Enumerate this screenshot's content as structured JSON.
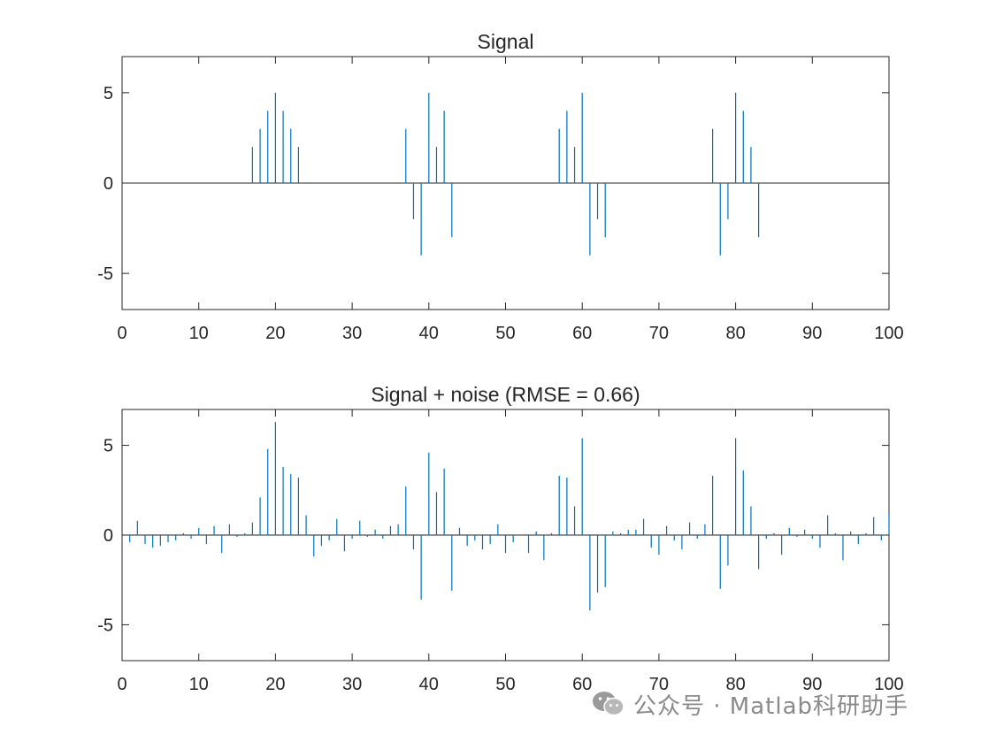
{
  "chart_data": [
    {
      "type": "stem",
      "title": "Signal",
      "xlabel": "",
      "ylabel": "",
      "xlim": [
        0,
        100
      ],
      "ylim": [
        -7,
        7
      ],
      "xticks": [
        0,
        10,
        20,
        30,
        40,
        50,
        60,
        70,
        80,
        90,
        100
      ],
      "yticks": [
        5,
        0,
        -5
      ],
      "color": "#0072BD",
      "x": [
        17,
        18,
        19,
        20,
        21,
        22,
        23,
        37,
        38,
        39,
        40,
        41,
        42,
        43,
        57,
        58,
        59,
        60,
        61,
        62,
        63,
        77,
        78,
        79,
        80,
        81,
        82,
        83
      ],
      "values": [
        2,
        3,
        4,
        5,
        4,
        3,
        2,
        3,
        -2,
        -4,
        5,
        2,
        4,
        -3,
        3,
        4,
        2,
        5,
        -4,
        -2,
        -3,
        3,
        -4,
        -2,
        5,
        4,
        2,
        -3
      ]
    },
    {
      "type": "stem",
      "title": "Signal + noise (RMSE = 0.66)",
      "xlabel": "",
      "ylabel": "",
      "xlim": [
        0,
        100
      ],
      "ylim": [
        -7,
        7
      ],
      "xticks": [
        0,
        10,
        20,
        30,
        40,
        50,
        60,
        70,
        80,
        90,
        100
      ],
      "yticks": [
        5,
        0,
        -5
      ],
      "color": "#0072BD",
      "x": [
        1,
        2,
        3,
        4,
        5,
        6,
        7,
        8,
        9,
        10,
        11,
        12,
        13,
        14,
        15,
        16,
        17,
        18,
        19,
        20,
        21,
        22,
        23,
        24,
        25,
        26,
        27,
        28,
        29,
        30,
        31,
        32,
        33,
        34,
        35,
        36,
        37,
        38,
        39,
        40,
        41,
        42,
        43,
        44,
        45,
        46,
        47,
        48,
        49,
        50,
        51,
        52,
        53,
        54,
        55,
        56,
        57,
        58,
        59,
        60,
        61,
        62,
        63,
        64,
        65,
        66,
        67,
        68,
        69,
        70,
        71,
        72,
        73,
        74,
        75,
        76,
        77,
        78,
        79,
        80,
        81,
        82,
        83,
        84,
        85,
        86,
        87,
        88,
        89,
        90,
        91,
        92,
        93,
        94,
        95,
        96,
        97,
        98,
        99,
        100
      ],
      "values": [
        -0.4,
        0.8,
        -0.5,
        -0.7,
        -0.6,
        -0.4,
        -0.3,
        0.1,
        -0.2,
        0.4,
        -0.5,
        0.5,
        -1.0,
        0.6,
        -0.1,
        0.1,
        0.7,
        2.1,
        4.8,
        6.3,
        3.8,
        3.4,
        3.2,
        1.1,
        -1.2,
        -0.6,
        -0.3,
        0.9,
        -0.9,
        -0.2,
        0.8,
        -0.1,
        0.3,
        -0.2,
        0.5,
        0.6,
        2.7,
        -0.8,
        -3.6,
        4.6,
        2.4,
        3.7,
        -3.1,
        0.4,
        -0.6,
        -0.3,
        -0.8,
        -0.5,
        0.6,
        -1.0,
        -0.4,
        0.0,
        -1.0,
        0.2,
        -1.4,
        0.1,
        3.3,
        3.2,
        1.6,
        5.4,
        -4.2,
        -3.2,
        -2.9,
        0.2,
        0.1,
        0.3,
        0.3,
        0.9,
        -0.7,
        -1.1,
        0.5,
        -0.3,
        -0.8,
        0.7,
        -0.2,
        0.6,
        3.3,
        -3.0,
        -1.7,
        5.4,
        3.6,
        1.6,
        -1.9,
        -0.2,
        0.1,
        -1.1,
        0.4,
        -0.1,
        0.3,
        -0.2,
        -0.7,
        1.1,
        0.1,
        -1.4,
        0.2,
        -0.5,
        0.1,
        1.0,
        -0.3,
        1.2
      ]
    }
  ],
  "watermark": {
    "icon": "wechat-icon",
    "text": "公众号 · Matlab科研助手"
  }
}
